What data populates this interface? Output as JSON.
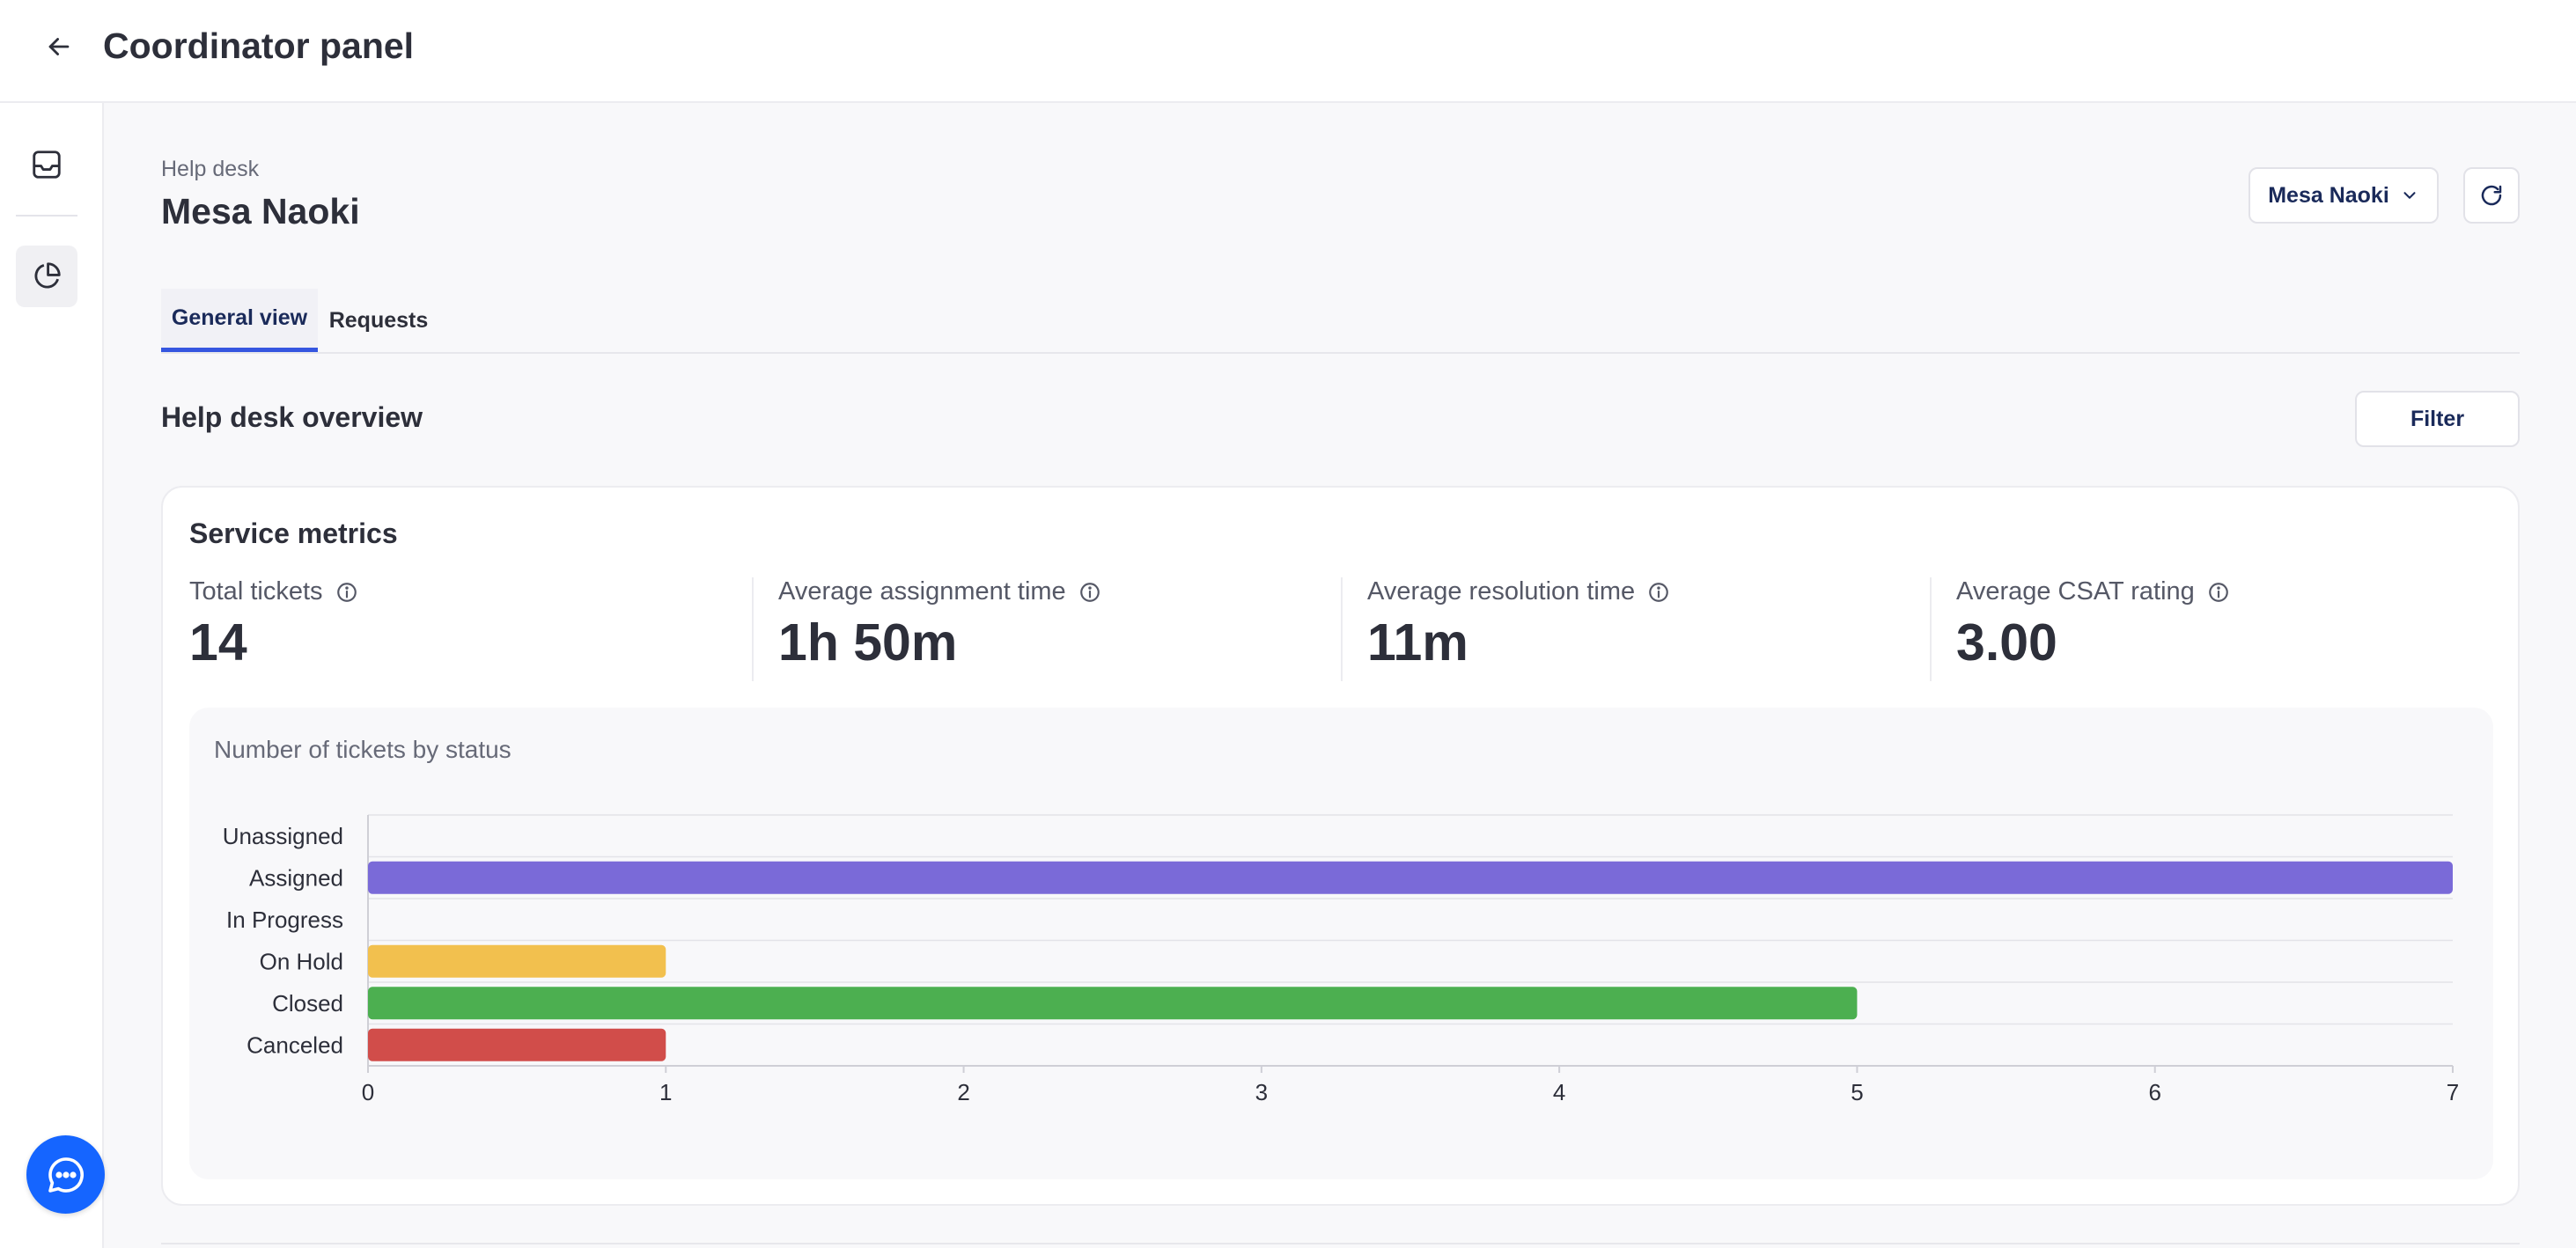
{
  "header": {
    "title": "Coordinator panel"
  },
  "breadcrumb": "Help desk",
  "page": {
    "title": "Mesa Naoki",
    "user_select": "Mesa Naoki"
  },
  "tabs": [
    {
      "label": "General view",
      "active": true
    },
    {
      "label": "Requests",
      "active": false
    }
  ],
  "overview": {
    "title": "Help desk overview",
    "filter_label": "Filter"
  },
  "metrics_card": {
    "title": "Service metrics",
    "metrics": [
      {
        "label": "Total tickets",
        "value": "14"
      },
      {
        "label": "Average assignment time",
        "value": "1h 50m"
      },
      {
        "label": "Average resolution time",
        "value": "11m"
      },
      {
        "label": "Average CSAT rating",
        "value": "3.00"
      }
    ]
  },
  "chart_title": "Number of tickets by status",
  "chart_data": {
    "type": "bar",
    "orientation": "horizontal",
    "title": "Number of tickets by status",
    "categories": [
      "Unassigned",
      "Assigned",
      "In Progress",
      "On Hold",
      "Closed",
      "Canceled"
    ],
    "values": [
      0,
      7,
      0,
      1,
      5,
      1
    ],
    "colors": [
      "#7a6ad8",
      "#7a6ad8",
      "#7a6ad8",
      "#f2c04e",
      "#4caf50",
      "#d14d4a"
    ],
    "xlim": [
      0,
      7
    ],
    "xticks": [
      "0",
      "1",
      "2",
      "3",
      "4",
      "5",
      "6",
      "7"
    ],
    "grid": true,
    "xlabel": "",
    "ylabel": ""
  },
  "colors": {
    "accent": "#3556e0",
    "fab": "#1565ff",
    "dark_text": "#2d2f3a"
  }
}
